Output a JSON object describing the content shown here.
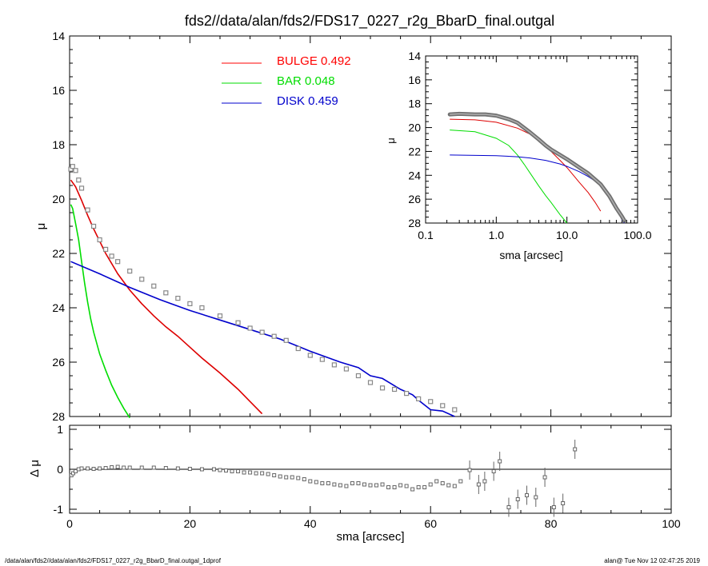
{
  "chart_data": [
    {
      "type": "scatter",
      "title": "fds2//data/alan/fds2/FDS17_0227_r2g_BbarD_final.outgal",
      "xlabel": "",
      "ylabel": "μ",
      "xlim": [
        0,
        100
      ],
      "ylim": [
        28,
        14
      ],
      "y_inverted": true,
      "xticks": [
        0,
        20,
        40,
        60,
        80,
        100
      ],
      "yticks": [
        14,
        16,
        18,
        20,
        22,
        24,
        26,
        28
      ],
      "yticklabels": [
        "14",
        "16",
        "18",
        "20",
        "22",
        "24",
        "26",
        "28"
      ],
      "legend": {
        "placement": "top-center",
        "entries": [
          {
            "name": "BULGE",
            "value": "0.492",
            "color": "#ff0000"
          },
          {
            "name": "BAR",
            "value": "0.048",
            "color": "#00dd00"
          },
          {
            "name": "DISK",
            "value": "0.459",
            "color": "#0000cc"
          }
        ]
      },
      "series": [
        {
          "name": "BULGE",
          "color": "#dd0000",
          "x": [
            0.2,
            1,
            2,
            3,
            4,
            5,
            6,
            8,
            10,
            12,
            14,
            16,
            18,
            20,
            22,
            25,
            28,
            30,
            32
          ],
          "y": [
            19.3,
            19.55,
            20.05,
            20.6,
            21.1,
            21.55,
            22.0,
            22.75,
            23.35,
            23.85,
            24.3,
            24.7,
            25.05,
            25.45,
            25.85,
            26.4,
            27.0,
            27.45,
            27.9
          ]
        },
        {
          "name": "BAR",
          "color": "#00dd00",
          "x": [
            0.2,
            0.5,
            1,
            1.5,
            2,
            2.5,
            3,
            3.5,
            4,
            5,
            6,
            7,
            8,
            9,
            10
          ],
          "y": [
            20.2,
            20.35,
            20.9,
            21.5,
            22.3,
            23.1,
            23.8,
            24.4,
            24.9,
            25.7,
            26.3,
            26.85,
            27.3,
            27.7,
            28.05
          ]
        },
        {
          "name": "DISK",
          "color": "#0000cc",
          "x": [
            0.2,
            5,
            10,
            15,
            20,
            25,
            30,
            35,
            40,
            45,
            48,
            50,
            52,
            55,
            57,
            58,
            60,
            62,
            64
          ],
          "y": [
            22.3,
            22.75,
            23.25,
            23.7,
            24.1,
            24.45,
            24.8,
            25.15,
            25.6,
            26.0,
            26.2,
            26.5,
            26.6,
            27.0,
            27.2,
            27.4,
            27.75,
            27.8,
            28.0
          ]
        },
        {
          "name": "",
          "color": "#888888",
          "x": [
            0.2,
            0.5,
            1,
            1.5,
            2,
            3,
            4,
            5,
            6,
            7,
            8,
            10,
            12,
            14,
            16,
            18,
            20,
            22,
            25,
            28,
            30,
            32,
            34,
            36,
            38,
            40,
            42,
            44,
            46,
            48,
            50,
            52,
            54,
            56,
            58,
            60,
            62,
            64
          ],
          "y": [
            18.9,
            18.8,
            18.95,
            19.3,
            19.6,
            20.4,
            21.0,
            21.5,
            21.85,
            22.1,
            22.3,
            22.65,
            22.95,
            23.2,
            23.45,
            23.65,
            23.85,
            24.0,
            24.3,
            24.55,
            24.75,
            24.9,
            25.05,
            25.2,
            25.5,
            25.75,
            25.9,
            26.1,
            26.25,
            26.5,
            26.75,
            26.95,
            27.0,
            27.15,
            27.35,
            27.45,
            27.6,
            27.75
          ]
        }
      ]
    },
    {
      "type": "scatter",
      "title": "",
      "xlabel": "sma [arcsec]",
      "ylabel": "Δ μ",
      "xlim": [
        0,
        100
      ],
      "ylim": [
        -1.1,
        1.1
      ],
      "xticks": [
        0,
        20,
        40,
        60,
        80,
        100
      ],
      "yticks": [
        -1,
        0,
        1
      ],
      "yticklabels": [
        "-1",
        "0",
        "1"
      ],
      "zero_line": true,
      "series": [
        {
          "name": "",
          "color": "#888888",
          "x": [
            0.3,
            0.6,
            1,
            1.5,
            2,
            3,
            4,
            5,
            6,
            7,
            8,
            9,
            10,
            12,
            14,
            16,
            18,
            20,
            22,
            24,
            25,
            26,
            27,
            28,
            29,
            30,
            31,
            32,
            33,
            34,
            35,
            36,
            37,
            38,
            39,
            40,
            41,
            42,
            43,
            44,
            45,
            46,
            47,
            48,
            49,
            50,
            51,
            52,
            53,
            54,
            55,
            56,
            57,
            58,
            59,
            60,
            61,
            62,
            63,
            64,
            65,
            66.5,
            68,
            69,
            70.5,
            71.5,
            73,
            74.5,
            76,
            77.5,
            79,
            80.5,
            82,
            84
          ],
          "y": [
            -0.15,
            -0.1,
            -0.05,
            0.0,
            0.02,
            0.02,
            0.01,
            0.02,
            0.03,
            0.05,
            0.06,
            0.04,
            0.04,
            0.04,
            0.04,
            0.03,
            0.02,
            0.01,
            0.0,
            0.0,
            -0.02,
            -0.03,
            -0.05,
            -0.05,
            -0.08,
            -0.08,
            -0.1,
            -0.1,
            -0.12,
            -0.15,
            -0.18,
            -0.2,
            -0.2,
            -0.22,
            -0.25,
            -0.3,
            -0.32,
            -0.35,
            -0.35,
            -0.38,
            -0.4,
            -0.42,
            -0.35,
            -0.35,
            -0.38,
            -0.4,
            -0.4,
            -0.38,
            -0.45,
            -0.45,
            -0.4,
            -0.42,
            -0.5,
            -0.45,
            -0.45,
            -0.38,
            -0.3,
            -0.35,
            -0.4,
            -0.42,
            -0.3,
            -0.02,
            -0.38,
            -0.3,
            -0.05,
            0.2,
            -0.95,
            -0.75,
            -0.65,
            -0.7,
            -0.2,
            -0.95,
            -0.85,
            0.5
          ]
        }
      ]
    },
    {
      "type": "scatter",
      "title": "",
      "xlabel": "sma [arcsec]",
      "ylabel": "μ",
      "x_scale": "log",
      "xlim": [
        0.1,
        100
      ],
      "ylim": [
        28,
        14
      ],
      "y_inverted": true,
      "xticks": [
        0.1,
        1,
        10,
        100
      ],
      "xticklabels": [
        "0.1",
        "1.0",
        "10.0",
        "100.0"
      ],
      "yticks": [
        14,
        16,
        18,
        20,
        22,
        24,
        26,
        28
      ],
      "yticklabels": [
        "14",
        "16",
        "18",
        "20",
        "22",
        "24",
        "26",
        "28"
      ],
      "series": [
        {
          "name": "BULGE",
          "color": "#dd0000",
          "x": [
            0.22,
            0.5,
            1,
            2,
            3,
            5,
            8,
            10,
            15,
            20,
            25,
            30
          ],
          "y": [
            19.3,
            19.35,
            19.55,
            20.05,
            20.55,
            21.55,
            22.75,
            23.35,
            24.6,
            25.45,
            26.25,
            27.0
          ]
        },
        {
          "name": "BAR",
          "color": "#00dd00",
          "x": [
            0.22,
            0.5,
            1,
            1.5,
            2,
            2.5,
            3,
            4,
            5,
            6,
            8,
            10
          ],
          "y": [
            20.2,
            20.35,
            20.9,
            21.5,
            22.3,
            23.1,
            23.8,
            24.9,
            25.7,
            26.3,
            27.3,
            28.0
          ]
        },
        {
          "name": "DISK",
          "color": "#0000cc",
          "x": [
            0.22,
            1,
            2,
            3,
            5,
            8,
            10,
            15,
            20,
            30,
            40,
            50,
            60,
            65
          ],
          "y": [
            22.3,
            22.35,
            22.45,
            22.55,
            22.75,
            23.05,
            23.25,
            23.7,
            24.1,
            24.8,
            25.6,
            26.5,
            27.75,
            28.0
          ]
        },
        {
          "name": "",
          "color": "#888888",
          "x": [
            0.22,
            0.3,
            0.5,
            0.7,
            1,
            1.5,
            2,
            3,
            4,
            5,
            6,
            8,
            10,
            15,
            20,
            30,
            40,
            50,
            60,
            65
          ],
          "y": [
            18.9,
            18.85,
            18.9,
            18.9,
            19.0,
            19.3,
            19.6,
            20.4,
            21.0,
            21.5,
            21.85,
            22.3,
            22.65,
            23.35,
            23.85,
            24.75,
            25.75,
            26.75,
            27.45,
            27.8
          ]
        }
      ]
    }
  ],
  "footer": {
    "left": "/data/alan/fds2//data/alan/fds2/FDS17_0227_r2g_BbarD_final.outgal_1dprof",
    "right": "alan@  Tue Nov 12 02:47:25 2019"
  }
}
